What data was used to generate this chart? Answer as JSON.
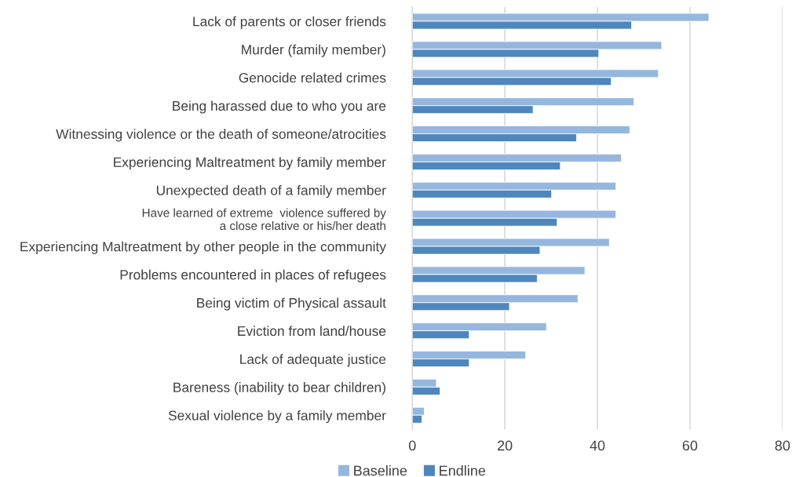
{
  "chart_data": {
    "type": "bar",
    "orientation": "horizontal",
    "categories": [
      "Lack of parents or closer friends",
      "Murder (family member)",
      "Genocide related crimes",
      "Being harassed due to who you are",
      "Witnessing violence or the death of someone/atrocities",
      "Experiencing Maltreatment by family member",
      "Unexpected death of a family member",
      "Have learned of extreme  violence suffered by\na close relative or his/her death",
      "Experiencing Maltreatment by other people in the community",
      "Problems encountered in places of refugees",
      "Being victim of Physical assault",
      "Eviction from land/house",
      "Lack of adequate justice",
      "Bareness (inability to bear children)",
      "Sexual violence by a family member"
    ],
    "series": [
      {
        "name": "Baseline",
        "color": "#95b7de",
        "values": [
          64.1,
          53.9,
          53.2,
          47.9,
          47.0,
          45.2,
          44.0,
          44.0,
          42.6,
          37.3,
          35.8,
          29.0,
          24.5,
          5.2,
          2.6
        ]
      },
      {
        "name": "Endline",
        "color": "#4f87bc",
        "values": [
          47.4,
          40.3,
          43.0,
          26.1,
          35.5,
          32.0,
          30.1,
          31.3,
          27.6,
          27.0,
          21.0,
          12.3,
          12.3,
          6.0,
          2.1
        ]
      }
    ],
    "xlim": [
      0,
      80
    ],
    "xticks": [
      0,
      20,
      40,
      60,
      80
    ],
    "grid": "x",
    "legend": "bottom"
  }
}
